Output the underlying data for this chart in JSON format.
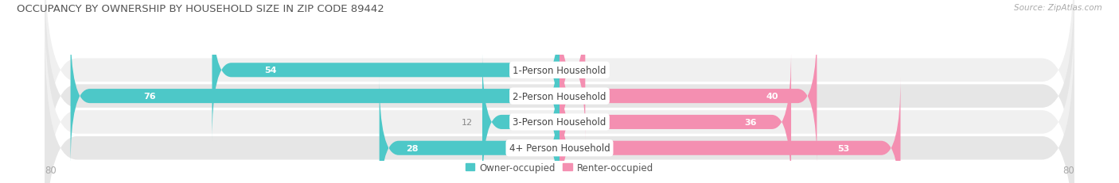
{
  "title": "OCCUPANCY BY OWNERSHIP BY HOUSEHOLD SIZE IN ZIP CODE 89442",
  "source": "Source: ZipAtlas.com",
  "categories": [
    "1-Person Household",
    "2-Person Household",
    "3-Person Household",
    "4+ Person Household"
  ],
  "owner_values": [
    54,
    76,
    12,
    28
  ],
  "renter_values": [
    4,
    40,
    36,
    53
  ],
  "owner_color": "#4dc8c8",
  "renter_color": "#f48fb1",
  "max_val": 80,
  "row_bg_light": "#f0f0f0",
  "row_bg_dark": "#e6e6e6",
  "pill_bg": "#e8e8e8",
  "sep_color": "#d8d8d8",
  "label_white": "#ffffff",
  "label_gray": "#888888",
  "center_label_color": "#444444",
  "axis_label_color": "#aaaaaa",
  "title_color": "#555555",
  "source_color": "#aaaaaa",
  "legend_owner": "Owner-occupied",
  "legend_renter": "Renter-occupied"
}
